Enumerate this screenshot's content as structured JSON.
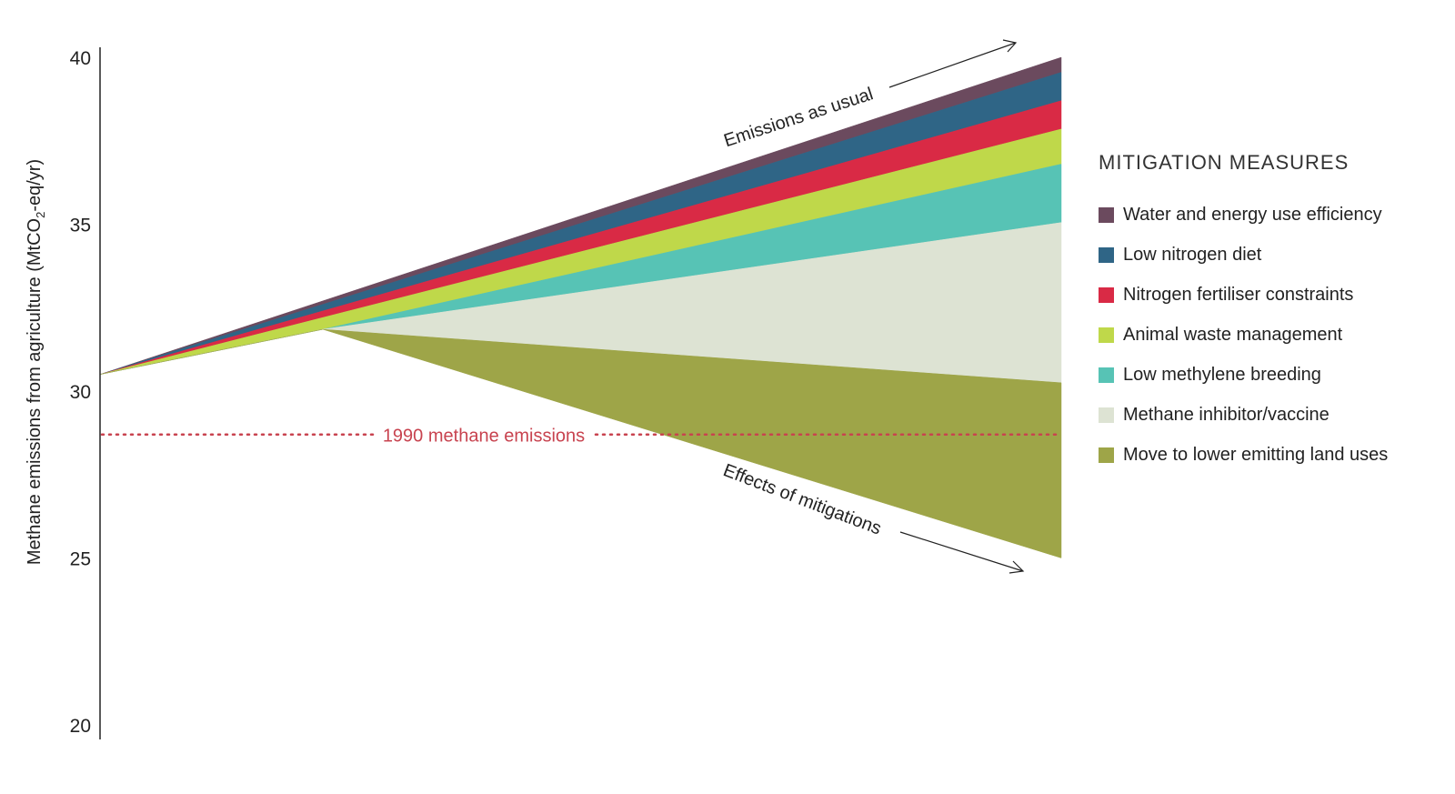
{
  "chart_data": {
    "type": "area",
    "title": "",
    "ylabel": "Methane emissions from agriculture (MtCO2-eq/yr)",
    "ylabel_parts": {
      "pre": "Methane emissions from agriculture (MtCO",
      "sub": "2",
      "post": "-eq/yr)"
    },
    "ylim": [
      20,
      40
    ],
    "yticks": [
      "20",
      "25",
      "30",
      "35",
      "40"
    ],
    "grid": false,
    "points": [
      "start",
      "branch",
      "end"
    ],
    "start_value": 30.5,
    "branch_value": 31.85,
    "legend_title": "MITIGATION MEASURES",
    "legend_placement": "right",
    "series": [
      {
        "name": "Water and energy use efficiency",
        "color": "#6b4a5e",
        "end_range": [
          39.55,
          40.0
        ]
      },
      {
        "name": "Low nitrogen diet",
        "color": "#2f6586",
        "end_range": [
          38.7,
          39.55
        ]
      },
      {
        "name": "Nitrogen fertiliser constraints",
        "color": "#d92a45",
        "end_range": [
          37.85,
          38.7
        ]
      },
      {
        "name": "Animal waste management",
        "color": "#bfd84a",
        "end_range": [
          36.8,
          37.85
        ]
      },
      {
        "name": "Low methylene breeding",
        "color": "#57c3b5",
        "end_range": [
          35.05,
          36.8
        ]
      },
      {
        "name": "Methane inhibitor/vaccine",
        "color": "#dde3d3",
        "end_range": [
          30.25,
          35.05
        ]
      },
      {
        "name": "Move to lower emitting land uses",
        "color": "#9ea548",
        "end_range": [
          25.0,
          30.25
        ]
      }
    ],
    "reference_line": {
      "label": "1990 methane emissions",
      "value": 28.7,
      "color": "#c8434f"
    },
    "annotations": {
      "upper": "Emissions as usual",
      "lower": "Effects of mitigations"
    }
  }
}
